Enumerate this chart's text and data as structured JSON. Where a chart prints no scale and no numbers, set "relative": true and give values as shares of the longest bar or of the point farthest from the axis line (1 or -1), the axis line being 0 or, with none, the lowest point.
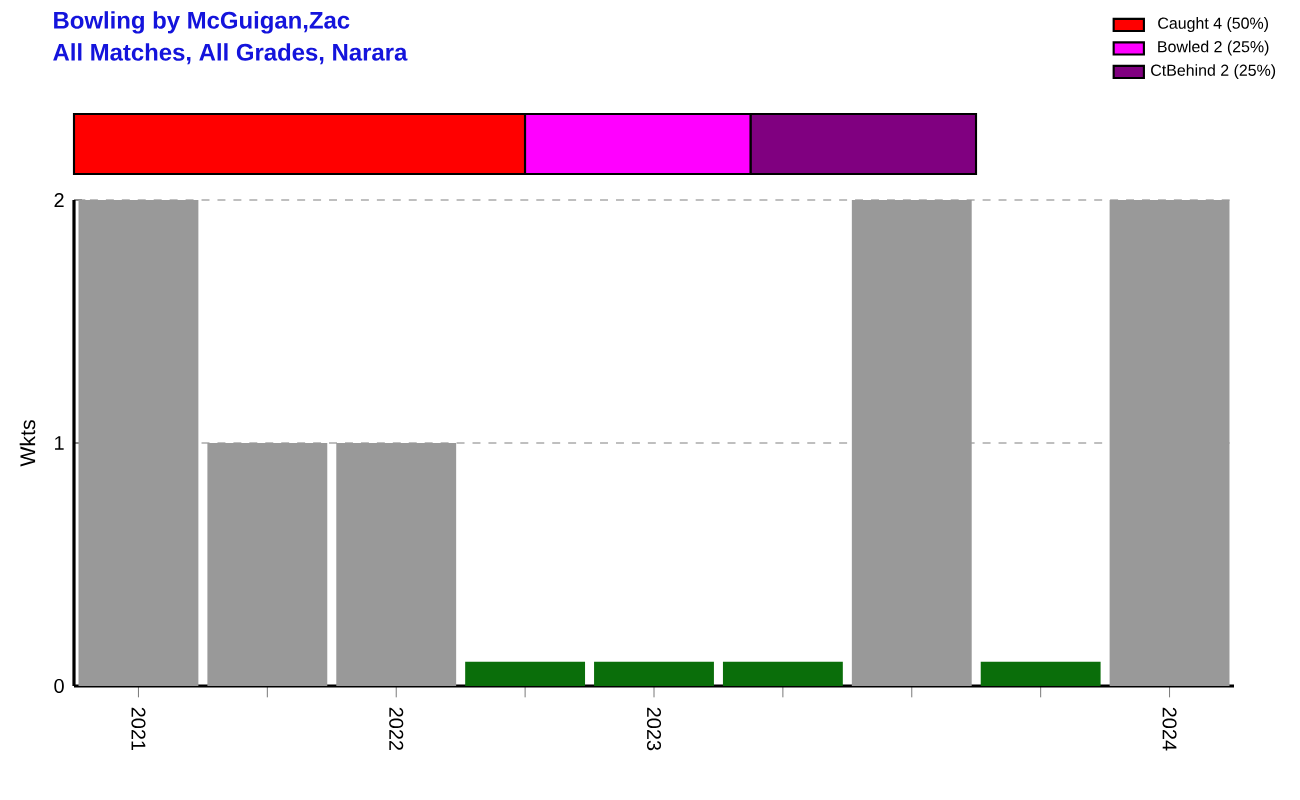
{
  "chart_data": [
    {
      "type": "bar",
      "orientation": "horizontal",
      "stacked": true,
      "relative": true,
      "title": "Bowling by McGuigan,Zac",
      "subtitle": "All Matches, All Grades, Narara",
      "legend": "top right",
      "categories": [
        null
      ],
      "series": [
        {
          "name": "Caught 4 (50%)",
          "color": "#ff0000",
          "values": [
            0.5
          ]
        },
        {
          "name": "Bowled 2 (25%)",
          "color": "#ff00ff",
          "values": [
            0.25
          ]
        },
        {
          "name": "CtBehind 2 (25%)",
          "color": "#800080",
          "values": [
            0.25
          ]
        }
      ]
    },
    {
      "type": "bar",
      "ylabel": "Wkts",
      "categories": [
        "2021",
        null,
        "2022",
        null,
        "2023",
        null,
        null,
        null,
        "2024"
      ],
      "values": [
        2,
        1,
        1,
        0.1,
        0.1,
        0.1,
        2,
        0.1,
        2
      ],
      "colors": [
        "#999999",
        "#999999",
        "#999999",
        "#0a6e0a",
        "#0a6e0a",
        "#0a6e0a",
        "#999999",
        "#0a6e0a",
        "#999999"
      ],
      "ylim": [
        0,
        2
      ],
      "yticks": [
        0,
        1,
        2
      ],
      "grid": "y"
    }
  ]
}
